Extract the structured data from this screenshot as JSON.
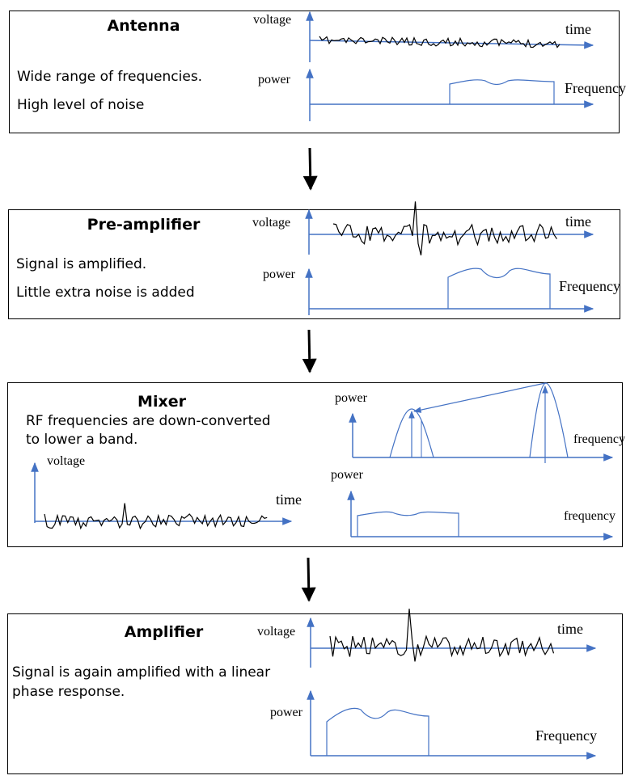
{
  "stages": [
    {
      "title": "Antenna",
      "lines": [
        "Wide range of frequencies.",
        "High level of noise"
      ],
      "labels": {
        "voltage": "voltage",
        "time": "time",
        "power": "power",
        "frequency": "Frequency"
      }
    },
    {
      "title": "Pre-amplifier",
      "lines": [
        "Signal is amplified.",
        "Little extra noise is added"
      ],
      "labels": {
        "voltage": "voltage",
        "time": "time",
        "power": "power",
        "frequency": "Frequency"
      }
    },
    {
      "title": "Mixer",
      "lines": [
        "RF frequencies are down-converted",
        "to lower a band."
      ],
      "labels": {
        "voltage": "voltage",
        "time": "time",
        "power_top": "power",
        "frequency_top": "frequency",
        "power_bottom": "power",
        "frequency_bottom": "frequency"
      }
    },
    {
      "title": "Amplifier",
      "lines": [
        "Signal is again amplified with a linear",
        "phase response."
      ],
      "labels": {
        "voltage": "voltage",
        "time": "time",
        "power": "power",
        "frequency": "Frequency"
      }
    }
  ],
  "colors": {
    "axis": "#4472c4",
    "signal": "#000000",
    "spectrum": "#4472c4",
    "border": "#000000"
  }
}
